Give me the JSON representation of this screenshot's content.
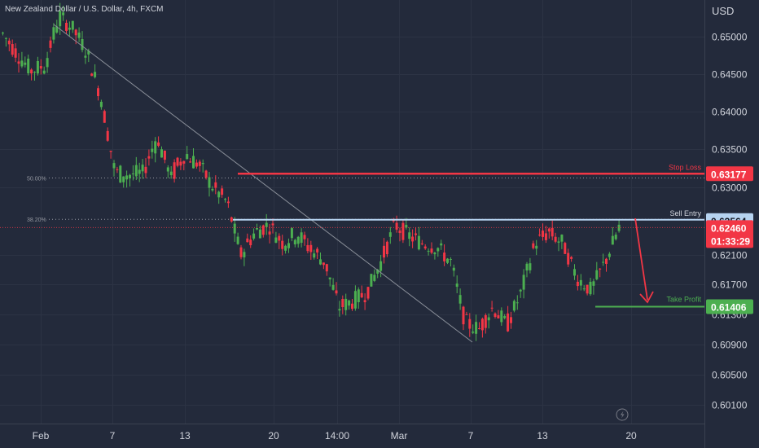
{
  "header": {
    "symbol_title": "New Zealand Dollar / U.S. Dollar, 4h, FXCM"
  },
  "chart_data": {
    "type": "candlestick",
    "title": "New Zealand Dollar / U.S. Dollar, 4h, FXCM",
    "currency_label": "USD",
    "y_ticks": [
      "0.65000",
      "0.64500",
      "0.64000",
      "0.63500",
      "0.63000",
      "0.62100",
      "0.61700",
      "0.61300",
      "0.60900",
      "0.60500",
      "0.60100"
    ],
    "ylim": [
      0.5985,
      0.6549
    ],
    "x_ticks": [
      "Feb",
      "7",
      "13",
      "20",
      "14:00",
      "Mar",
      "7",
      "13",
      "20"
    ],
    "grid": true,
    "colors": {
      "background": "#232a3b",
      "up": "#4caf50",
      "down": "#f23645",
      "stop": "#f23645",
      "entry": "#b6d3f0",
      "take_profit": "#4caf50",
      "trend": "#8a8f99"
    },
    "levels": [
      {
        "label": "Stop Loss",
        "price": "0.63177",
        "color": "#f23645"
      },
      {
        "label": "Sell Entry",
        "price": "0.62564",
        "color": "#b6d3f0"
      },
      {
        "label": "Take Profit",
        "price": "0.61406",
        "color": "#4caf50"
      }
    ],
    "fib_levels": [
      {
        "label": "50.00%",
        "value": 0.6312
      },
      {
        "label": "38.20%",
        "value": 0.6257
      }
    ],
    "current_price": {
      "value": "0.62460",
      "countdown": "01:33:29"
    },
    "series": [
      {
        "name": "NZDUSD 4h",
        "keypoints": [
          [
            0.6505,
            0.6504
          ],
          [
            0.6478,
            0.6478
          ],
          [
            0.6455,
            0.6455
          ],
          [
            0.646,
            0.6462
          ],
          [
            0.652,
            0.653
          ],
          [
            0.6515,
            0.651
          ],
          [
            0.648,
            0.648
          ],
          [
            0.642,
            0.642
          ],
          [
            0.632,
            0.632
          ],
          [
            0.631,
            0.6318
          ],
          [
            0.632,
            0.6318
          ],
          [
            0.636,
            0.637
          ],
          [
            0.632,
            0.631
          ],
          [
            0.634,
            0.6345
          ],
          [
            0.633,
            0.633
          ],
          [
            0.63,
            0.63
          ],
          [
            0.628,
            0.628
          ],
          [
            0.621,
            0.621
          ],
          [
            0.624,
            0.624
          ],
          [
            0.625,
            0.625
          ],
          [
            0.6225,
            0.6225
          ],
          [
            0.6235,
            0.624
          ],
          [
            0.622,
            0.6215
          ],
          [
            0.62,
            0.62
          ],
          [
            0.614,
            0.614
          ],
          [
            0.6148,
            0.6148
          ],
          [
            0.616,
            0.616
          ],
          [
            0.62,
            0.62
          ],
          [
            0.625,
            0.625
          ],
          [
            0.6235,
            0.6235
          ],
          [
            0.6225,
            0.6225
          ],
          [
            0.622,
            0.622
          ],
          [
            0.62,
            0.62
          ],
          [
            0.612,
            0.612
          ],
          [
            0.6112,
            0.611
          ],
          [
            0.614,
            0.614
          ],
          [
            0.6118,
            0.6115
          ],
          [
            0.6155,
            0.616
          ],
          [
            0.6225,
            0.6225
          ],
          [
            0.624,
            0.624
          ],
          [
            0.622,
            0.6225
          ],
          [
            0.618,
            0.618
          ],
          [
            0.6162,
            0.6162
          ],
          [
            0.62,
            0.62
          ],
          [
            0.6242,
            0.6246
          ]
        ]
      }
    ],
    "annotations": [
      {
        "type": "trendline",
        "from": [
          "Feb 3",
          0.6536
        ],
        "to": [
          "Mar 7",
          0.6075
        ]
      },
      {
        "type": "arrow",
        "direction": "down",
        "from": 0.6255,
        "to": 0.614
      }
    ]
  }
}
